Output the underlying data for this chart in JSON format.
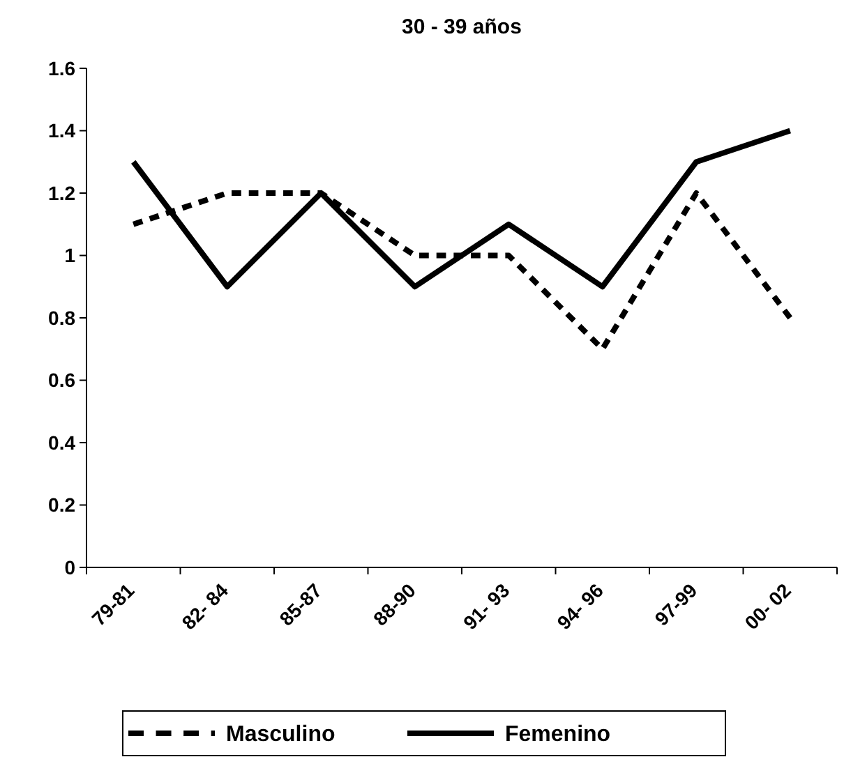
{
  "chart_data": {
    "type": "line",
    "title": "30 - 39 años",
    "categories": [
      "79-81",
      "82- 84",
      "85-87",
      "88-90",
      "91- 93",
      "94- 96",
      "97-99",
      "00- 02"
    ],
    "series": [
      {
        "name": "Masculino",
        "color": "#000000",
        "line_style": "dashed",
        "values": [
          1.1,
          1.2,
          1.2,
          1.0,
          1.0,
          0.7,
          1.2,
          0.8
        ]
      },
      {
        "name": "Femenino",
        "color": "#000000",
        "line_style": "solid",
        "values": [
          1.3,
          0.9,
          1.2,
          0.9,
          1.1,
          0.9,
          1.3,
          1.4
        ]
      }
    ],
    "ylim": [
      0,
      1.6
    ],
    "yticks": [
      0,
      0.2,
      0.4,
      0.6,
      0.8,
      1,
      1.2,
      1.4,
      1.6
    ],
    "grid": false,
    "legend": "bottom",
    "marker": "none"
  }
}
